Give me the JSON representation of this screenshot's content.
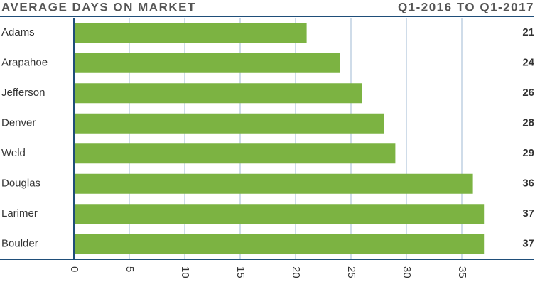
{
  "chart_data": {
    "type": "bar",
    "orientation": "horizontal",
    "title": "AVERAGE DAYS ON MARKET",
    "subtitle": "Q1-2016 TO Q1-2017",
    "categories": [
      "Adams",
      "Arapahoe",
      "Jefferson",
      "Denver",
      "Weld",
      "Douglas",
      "Larimer",
      "Boulder"
    ],
    "values": [
      21,
      24,
      26,
      28,
      29,
      36,
      37,
      37
    ],
    "color": "#7cb342",
    "xlim": [
      0,
      40
    ],
    "xticks": [
      0,
      5,
      10,
      15,
      20,
      25,
      30,
      35
    ],
    "grid": true
  }
}
